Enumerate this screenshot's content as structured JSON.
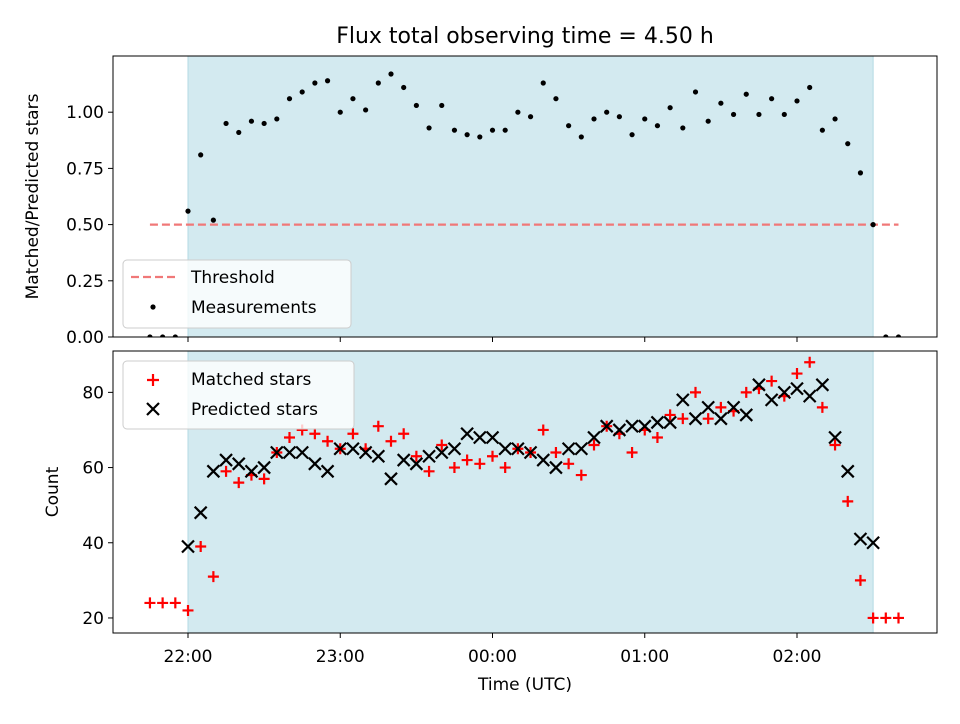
{
  "figure": {
    "title": "Flux total observing time = 4.50 h",
    "xlabel": "Time (UTC)",
    "x_tick_labels": [
      "22:00",
      "23:00",
      "00:00",
      "01:00",
      "02:00"
    ]
  },
  "chart_data": [
    {
      "type": "scatter",
      "ylabel": "Matched/Predicted stars",
      "ylim": [
        0,
        1.25
      ],
      "y_ticks": [
        0.0,
        0.25,
        0.5,
        0.75,
        1.0
      ],
      "y_tick_labels": [
        "0.00",
        "0.25",
        "0.50",
        "0.75",
        "1.00"
      ],
      "xlim": [
        "21:30",
        "02:55"
      ],
      "x_ticks": [
        "22:00",
        "23:00",
        "00:00",
        "01:00",
        "02:00"
      ],
      "grid": false,
      "legend": {
        "placement": "lower-left",
        "entries": [
          "Threshold",
          "Measurements"
        ]
      },
      "shaded_region": {
        "x_start": "22:00",
        "x_end": "02:30",
        "color": "#d3eaf0"
      },
      "threshold": {
        "name": "Threshold",
        "x_start": "21:45",
        "x_end": "02:40",
        "y": 0.5,
        "color": "#f07878",
        "style": "dashed"
      },
      "series": [
        {
          "name": "Measurements",
          "color": "#000000",
          "points": [
            [
              "21:45",
              0.0
            ],
            [
              "21:50",
              0.0
            ],
            [
              "21:55",
              0.0
            ],
            [
              "22:00",
              0.56
            ],
            [
              "22:05",
              0.81
            ],
            [
              "22:10",
              0.52
            ],
            [
              "22:15",
              0.95
            ],
            [
              "22:20",
              0.91
            ],
            [
              "22:25",
              0.96
            ],
            [
              "22:30",
              0.95
            ],
            [
              "22:35",
              0.97
            ],
            [
              "22:40",
              1.06
            ],
            [
              "22:45",
              1.09
            ],
            [
              "22:50",
              1.13
            ],
            [
              "22:55",
              1.14
            ],
            [
              "23:00",
              1.0
            ],
            [
              "23:05",
              1.06
            ],
            [
              "23:10",
              1.01
            ],
            [
              "23:15",
              1.13
            ],
            [
              "23:20",
              1.17
            ],
            [
              "23:25",
              1.11
            ],
            [
              "23:30",
              1.03
            ],
            [
              "23:35",
              0.93
            ],
            [
              "23:40",
              1.03
            ],
            [
              "23:45",
              0.92
            ],
            [
              "23:50",
              0.9
            ],
            [
              "23:55",
              0.89
            ],
            [
              "00:00",
              0.92
            ],
            [
              "00:05",
              0.92
            ],
            [
              "00:10",
              1.0
            ],
            [
              "00:15",
              0.98
            ],
            [
              "00:20",
              1.13
            ],
            [
              "00:25",
              1.06
            ],
            [
              "00:30",
              0.94
            ],
            [
              "00:35",
              0.89
            ],
            [
              "00:40",
              0.97
            ],
            [
              "00:45",
              1.0
            ],
            [
              "00:50",
              0.98
            ],
            [
              "00:55",
              0.9
            ],
            [
              "01:00",
              0.97
            ],
            [
              "01:05",
              0.94
            ],
            [
              "01:10",
              1.02
            ],
            [
              "01:15",
              0.93
            ],
            [
              "01:20",
              1.09
            ],
            [
              "01:25",
              0.96
            ],
            [
              "01:30",
              1.04
            ],
            [
              "01:35",
              0.99
            ],
            [
              "01:40",
              1.08
            ],
            [
              "01:45",
              0.99
            ],
            [
              "01:50",
              1.06
            ],
            [
              "01:55",
              0.99
            ],
            [
              "02:00",
              1.05
            ],
            [
              "02:05",
              1.11
            ],
            [
              "02:10",
              0.92
            ],
            [
              "02:15",
              0.97
            ],
            [
              "02:20",
              0.86
            ],
            [
              "02:25",
              0.73
            ],
            [
              "02:30",
              0.5
            ],
            [
              "02:35",
              0.0
            ],
            [
              "02:40",
              0.0
            ]
          ]
        }
      ]
    },
    {
      "type": "scatter",
      "ylabel": "Count",
      "ylim": [
        16,
        91
      ],
      "y_ticks": [
        20,
        40,
        60,
        80
      ],
      "y_tick_labels": [
        "20",
        "40",
        "60",
        "80"
      ],
      "xlim": [
        "21:30",
        "02:55"
      ],
      "x_ticks": [
        "22:00",
        "23:00",
        "00:00",
        "01:00",
        "02:00"
      ],
      "grid": false,
      "legend": {
        "placement": "top-left",
        "entries": [
          "Matched stars",
          "Predicted stars"
        ]
      },
      "shaded_region": {
        "x_start": "22:00",
        "x_end": "02:30",
        "color": "#d3eaf0"
      },
      "series": [
        {
          "name": "Matched stars",
          "marker": "plus",
          "color": "#ff0000",
          "points": [
            [
              "21:45",
              24
            ],
            [
              "21:50",
              24
            ],
            [
              "21:55",
              24
            ],
            [
              "22:00",
              22
            ],
            [
              "22:05",
              39
            ],
            [
              "22:10",
              31
            ],
            [
              "22:15",
              59
            ],
            [
              "22:20",
              56
            ],
            [
              "22:25",
              58
            ],
            [
              "22:30",
              57
            ],
            [
              "22:35",
              64
            ],
            [
              "22:40",
              68
            ],
            [
              "22:45",
              70
            ],
            [
              "22:50",
              69
            ],
            [
              "22:55",
              67
            ],
            [
              "23:00",
              65
            ],
            [
              "23:05",
              69
            ],
            [
              "23:10",
              65
            ],
            [
              "23:15",
              71
            ],
            [
              "23:20",
              67
            ],
            [
              "23:25",
              69
            ],
            [
              "23:30",
              63
            ],
            [
              "23:35",
              59
            ],
            [
              "23:40",
              66
            ],
            [
              "23:45",
              60
            ],
            [
              "23:50",
              62
            ],
            [
              "23:55",
              61
            ],
            [
              "00:00",
              63
            ],
            [
              "00:05",
              60
            ],
            [
              "00:10",
              65
            ],
            [
              "00:15",
              64
            ],
            [
              "00:20",
              70
            ],
            [
              "00:25",
              64
            ],
            [
              "00:30",
              61
            ],
            [
              "00:35",
              58
            ],
            [
              "00:40",
              66
            ],
            [
              "00:45",
              71
            ],
            [
              "00:50",
              69
            ],
            [
              "00:55",
              64
            ],
            [
              "01:00",
              70
            ],
            [
              "01:05",
              68
            ],
            [
              "01:10",
              74
            ],
            [
              "01:15",
              73
            ],
            [
              "01:20",
              80
            ],
            [
              "01:25",
              73
            ],
            [
              "01:30",
              76
            ],
            [
              "01:35",
              75
            ],
            [
              "01:40",
              80
            ],
            [
              "01:45",
              81
            ],
            [
              "01:50",
              83
            ],
            [
              "01:55",
              79
            ],
            [
              "02:00",
              85
            ],
            [
              "02:05",
              88
            ],
            [
              "02:10",
              76
            ],
            [
              "02:15",
              66
            ],
            [
              "02:20",
              51
            ],
            [
              "02:25",
              30
            ],
            [
              "02:30",
              20
            ],
            [
              "02:35",
              20
            ],
            [
              "02:40",
              20
            ]
          ]
        },
        {
          "name": "Predicted stars",
          "marker": "x",
          "color": "#000000",
          "points": [
            [
              "22:00",
              39
            ],
            [
              "22:05",
              48
            ],
            [
              "22:10",
              59
            ],
            [
              "22:15",
              62
            ],
            [
              "22:20",
              61
            ],
            [
              "22:25",
              59
            ],
            [
              "22:30",
              60
            ],
            [
              "22:35",
              64
            ],
            [
              "22:40",
              64
            ],
            [
              "22:45",
              64
            ],
            [
              "22:50",
              61
            ],
            [
              "22:55",
              59
            ],
            [
              "23:00",
              65
            ],
            [
              "23:05",
              65
            ],
            [
              "23:10",
              64
            ],
            [
              "23:15",
              63
            ],
            [
              "23:20",
              57
            ],
            [
              "23:25",
              62
            ],
            [
              "23:30",
              61
            ],
            [
              "23:35",
              63
            ],
            [
              "23:40",
              64
            ],
            [
              "23:45",
              65
            ],
            [
              "23:50",
              69
            ],
            [
              "23:55",
              68
            ],
            [
              "00:00",
              68
            ],
            [
              "00:05",
              65
            ],
            [
              "00:10",
              65
            ],
            [
              "00:15",
              64
            ],
            [
              "00:20",
              62
            ],
            [
              "00:25",
              60
            ],
            [
              "00:30",
              65
            ],
            [
              "00:35",
              65
            ],
            [
              "00:40",
              68
            ],
            [
              "00:45",
              71
            ],
            [
              "00:50",
              70
            ],
            [
              "00:55",
              71
            ],
            [
              "01:00",
              71
            ],
            [
              "01:05",
              72
            ],
            [
              "01:10",
              72
            ],
            [
              "01:15",
              78
            ],
            [
              "01:20",
              73
            ],
            [
              "01:25",
              76
            ],
            [
              "01:30",
              73
            ],
            [
              "01:35",
              76
            ],
            [
              "01:40",
              74
            ],
            [
              "01:45",
              82
            ],
            [
              "01:50",
              78
            ],
            [
              "01:55",
              80
            ],
            [
              "02:00",
              81
            ],
            [
              "02:05",
              79
            ],
            [
              "02:10",
              82
            ],
            [
              "02:15",
              68
            ],
            [
              "02:20",
              59
            ],
            [
              "02:25",
              41
            ],
            [
              "02:30",
              40
            ]
          ]
        }
      ]
    }
  ]
}
